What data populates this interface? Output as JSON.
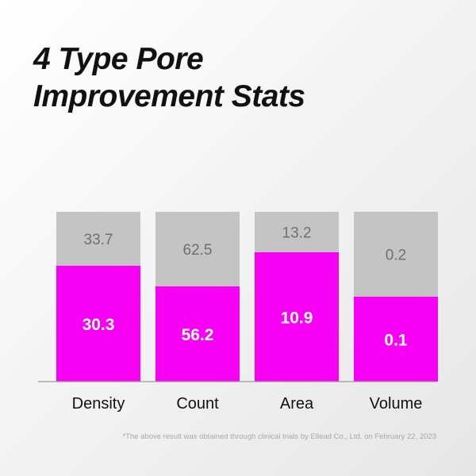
{
  "title_lines": [
    "4 Type Pore",
    "Improvement Stats"
  ],
  "footnote": "*The above result was obtained through clinical trials by Ellead Co., Ltd. on February 22, 2023",
  "colors": {
    "before": "#c4c4c4",
    "after": "#f700f4",
    "before_label": "#6f6f6f",
    "after_label": "#ffffff",
    "axis": "#9a9a9a"
  },
  "chart_data": {
    "type": "bar",
    "stacked": true,
    "normalized": true,
    "categories": [
      "Density",
      "Count",
      "Area",
      "Volume"
    ],
    "series": [
      {
        "values": [
          33.7,
          62.5,
          13.2,
          0.2
        ]
      },
      {
        "values": [
          30.3,
          56.2,
          10.9,
          0.1
        ]
      }
    ],
    "after_fill_fraction": [
      0.68,
      0.56,
      0.76,
      0.5
    ],
    "title": "4 Type Pore Improvement Stats",
    "xlabel": "",
    "ylabel": "",
    "grid": false,
    "legend": "none"
  }
}
